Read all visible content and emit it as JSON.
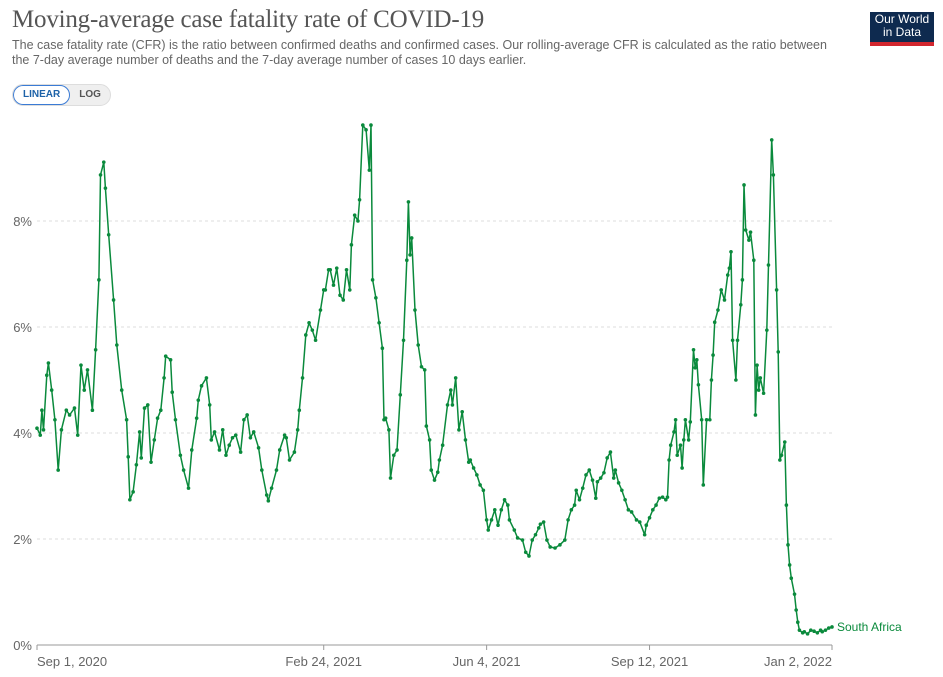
{
  "header": {
    "title": "Moving-average case fatality rate of COVID-19",
    "subtitle": "The case fatality rate (CFR) is the ratio between confirmed deaths and confirmed cases. Our rolling-average CFR is calculated as the ratio between the 7-day average number of deaths and the 7-day average number of cases 10 days earlier.",
    "logo_line1": "Our World",
    "logo_line2": "in Data",
    "scale_options": [
      "LINEAR",
      "LOG"
    ],
    "scale_selected": "LINEAR"
  },
  "colors": {
    "series": "#0a8a3c",
    "logo_bg": "#0e2a4f",
    "logo_accent": "#d2262e",
    "toggle_active": "#1d62a8"
  },
  "chart_data": {
    "type": "line",
    "title": "Moving-average case fatality rate of COVID-19",
    "xlabel": "",
    "ylabel": "",
    "x_ticks": [
      "Sep 1, 2020",
      "Feb 24, 2021",
      "Jun 4, 2021",
      "Sep 12, 2021",
      "Jan 2, 2022"
    ],
    "x_tick_dates": [
      "2020-09-01",
      "2021-02-24",
      "2021-06-04",
      "2021-09-12",
      "2022-01-02"
    ],
    "xlim": [
      "2020-09-01",
      "2022-01-02"
    ],
    "y_ticks": [
      "0%",
      "2%",
      "4%",
      "6%",
      "8%"
    ],
    "y_tick_values": [
      0,
      2,
      4,
      6,
      8
    ],
    "ylim": [
      0,
      10
    ],
    "grid": "horizontal dashed",
    "markers": true,
    "series": [
      {
        "name": "South Africa",
        "points": [
          [
            "2020-09-01",
            4.09
          ],
          [
            "2020-09-03",
            3.96
          ],
          [
            "2020-09-04",
            4.43
          ],
          [
            "2020-09-05",
            4.06
          ],
          [
            "2020-09-07",
            5.09
          ],
          [
            "2020-09-08",
            5.32
          ],
          [
            "2020-09-10",
            4.81
          ],
          [
            "2020-09-12",
            4.25
          ],
          [
            "2020-09-14",
            3.3
          ],
          [
            "2020-09-16",
            4.06
          ],
          [
            "2020-09-19",
            4.43
          ],
          [
            "2020-09-21",
            4.34
          ],
          [
            "2020-09-24",
            4.47
          ],
          [
            "2020-09-26",
            3.96
          ],
          [
            "2020-09-28",
            5.28
          ],
          [
            "2020-09-30",
            4.81
          ],
          [
            "2020-10-02",
            5.19
          ],
          [
            "2020-10-05",
            4.43
          ],
          [
            "2020-10-07",
            5.57
          ],
          [
            "2020-10-09",
            6.89
          ],
          [
            "2020-10-10",
            8.87
          ],
          [
            "2020-10-12",
            9.11
          ],
          [
            "2020-10-13",
            8.62
          ],
          [
            "2020-10-15",
            7.74
          ],
          [
            "2020-10-18",
            6.51
          ],
          [
            "2020-10-20",
            5.66
          ],
          [
            "2020-10-23",
            4.81
          ],
          [
            "2020-10-26",
            4.25
          ],
          [
            "2020-10-27",
            3.55
          ],
          [
            "2020-10-28",
            2.74
          ],
          [
            "2020-10-30",
            2.89
          ],
          [
            "2020-11-01",
            3.4
          ],
          [
            "2020-11-03",
            4.02
          ],
          [
            "2020-11-04",
            3.53
          ],
          [
            "2020-11-06",
            4.47
          ],
          [
            "2020-11-08",
            4.53
          ],
          [
            "2020-11-10",
            3.45
          ],
          [
            "2020-11-12",
            3.87
          ],
          [
            "2020-11-14",
            4.28
          ],
          [
            "2020-11-16",
            4.43
          ],
          [
            "2020-11-18",
            5.04
          ],
          [
            "2020-11-19",
            5.45
          ],
          [
            "2020-11-22",
            5.38
          ],
          [
            "2020-11-23",
            4.77
          ],
          [
            "2020-11-25",
            4.25
          ],
          [
            "2020-11-28",
            3.58
          ],
          [
            "2020-11-30",
            3.3
          ],
          [
            "2020-12-03",
            2.96
          ],
          [
            "2020-12-05",
            3.68
          ],
          [
            "2020-12-08",
            4.28
          ],
          [
            "2020-12-09",
            4.62
          ],
          [
            "2020-12-11",
            4.89
          ],
          [
            "2020-12-14",
            5.04
          ],
          [
            "2020-12-16",
            4.53
          ],
          [
            "2020-12-17",
            3.87
          ],
          [
            "2020-12-19",
            4.02
          ],
          [
            "2020-12-22",
            3.68
          ],
          [
            "2020-12-24",
            4.06
          ],
          [
            "2020-12-26",
            3.58
          ],
          [
            "2020-12-28",
            3.77
          ],
          [
            "2020-12-30",
            3.91
          ],
          [
            "2021-01-01",
            3.96
          ],
          [
            "2021-01-04",
            3.64
          ],
          [
            "2021-01-06",
            4.25
          ],
          [
            "2021-01-08",
            4.34
          ],
          [
            "2021-01-10",
            3.91
          ],
          [
            "2021-01-12",
            4.02
          ],
          [
            "2021-01-15",
            3.72
          ],
          [
            "2021-01-17",
            3.3
          ],
          [
            "2021-01-20",
            2.83
          ],
          [
            "2021-01-21",
            2.72
          ],
          [
            "2021-01-23",
            2.96
          ],
          [
            "2021-01-26",
            3.3
          ],
          [
            "2021-01-28",
            3.68
          ],
          [
            "2021-01-31",
            3.96
          ],
          [
            "2021-02-01",
            3.91
          ],
          [
            "2021-02-03",
            3.49
          ],
          [
            "2021-02-06",
            3.64
          ],
          [
            "2021-02-08",
            4.06
          ],
          [
            "2021-02-09",
            4.43
          ],
          [
            "2021-02-11",
            5.04
          ],
          [
            "2021-02-13",
            5.85
          ],
          [
            "2021-02-15",
            6.08
          ],
          [
            "2021-02-17",
            5.94
          ],
          [
            "2021-02-19",
            5.75
          ],
          [
            "2021-02-22",
            6.32
          ],
          [
            "2021-02-24",
            6.7
          ],
          [
            "2021-02-25",
            6.7
          ],
          [
            "2021-02-27",
            7.08
          ],
          [
            "2021-02-28",
            7.08
          ],
          [
            "2021-03-02",
            6.79
          ],
          [
            "2021-03-04",
            7.11
          ],
          [
            "2021-03-06",
            6.6
          ],
          [
            "2021-03-08",
            6.51
          ],
          [
            "2021-03-10",
            7.08
          ],
          [
            "2021-03-12",
            6.7
          ],
          [
            "2021-03-13",
            7.55
          ],
          [
            "2021-03-15",
            8.11
          ],
          [
            "2021-03-17",
            8.0
          ],
          [
            "2021-03-18",
            8.4
          ],
          [
            "2021-03-20",
            9.81
          ],
          [
            "2021-03-22",
            9.72
          ],
          [
            "2021-03-24",
            8.96
          ],
          [
            "2021-03-25",
            9.81
          ],
          [
            "2021-03-26",
            6.89
          ],
          [
            "2021-03-28",
            6.55
          ],
          [
            "2021-03-30",
            6.08
          ],
          [
            "2021-04-01",
            5.6
          ],
          [
            "2021-04-02",
            4.25
          ],
          [
            "2021-04-03",
            4.28
          ],
          [
            "2021-04-05",
            4.06
          ],
          [
            "2021-04-06",
            3.15
          ],
          [
            "2021-04-08",
            3.58
          ],
          [
            "2021-04-10",
            3.68
          ],
          [
            "2021-04-12",
            4.72
          ],
          [
            "2021-04-14",
            5.75
          ],
          [
            "2021-04-16",
            7.26
          ],
          [
            "2021-04-17",
            8.36
          ],
          [
            "2021-04-18",
            7.36
          ],
          [
            "2021-04-19",
            7.68
          ],
          [
            "2021-04-21",
            6.32
          ],
          [
            "2021-04-23",
            5.66
          ],
          [
            "2021-04-25",
            5.25
          ],
          [
            "2021-04-27",
            5.19
          ],
          [
            "2021-04-28",
            4.13
          ],
          [
            "2021-04-30",
            3.87
          ],
          [
            "2021-05-01",
            3.3
          ],
          [
            "2021-05-03",
            3.11
          ],
          [
            "2021-05-05",
            3.26
          ],
          [
            "2021-05-06",
            3.49
          ],
          [
            "2021-05-08",
            3.77
          ],
          [
            "2021-05-11",
            4.53
          ],
          [
            "2021-05-13",
            4.81
          ],
          [
            "2021-05-14",
            4.53
          ],
          [
            "2021-05-16",
            5.04
          ],
          [
            "2021-05-18",
            4.06
          ],
          [
            "2021-05-20",
            4.4
          ],
          [
            "2021-05-22",
            3.87
          ],
          [
            "2021-05-24",
            3.45
          ],
          [
            "2021-05-25",
            3.49
          ],
          [
            "2021-05-27",
            3.34
          ],
          [
            "2021-05-29",
            3.21
          ],
          [
            "2021-05-31",
            3.02
          ],
          [
            "2021-06-02",
            2.92
          ],
          [
            "2021-06-04",
            2.36
          ],
          [
            "2021-06-05",
            2.17
          ],
          [
            "2021-06-07",
            2.36
          ],
          [
            "2021-06-09",
            2.55
          ],
          [
            "2021-06-11",
            2.26
          ],
          [
            "2021-06-13",
            2.55
          ],
          [
            "2021-06-15",
            2.74
          ],
          [
            "2021-06-17",
            2.64
          ],
          [
            "2021-06-18",
            2.36
          ],
          [
            "2021-06-21",
            2.17
          ],
          [
            "2021-06-23",
            2.02
          ],
          [
            "2021-06-26",
            1.98
          ],
          [
            "2021-06-28",
            1.75
          ],
          [
            "2021-06-30",
            1.68
          ],
          [
            "2021-07-02",
            1.98
          ],
          [
            "2021-07-04",
            2.08
          ],
          [
            "2021-07-06",
            2.21
          ],
          [
            "2021-07-07",
            2.28
          ],
          [
            "2021-07-09",
            2.32
          ],
          [
            "2021-07-11",
            1.98
          ],
          [
            "2021-07-13",
            1.85
          ],
          [
            "2021-07-16",
            1.83
          ],
          [
            "2021-07-19",
            1.89
          ],
          [
            "2021-07-22",
            1.98
          ],
          [
            "2021-07-24",
            2.36
          ],
          [
            "2021-07-26",
            2.55
          ],
          [
            "2021-07-28",
            2.64
          ],
          [
            "2021-07-29",
            2.92
          ],
          [
            "2021-07-31",
            2.74
          ],
          [
            "2021-08-02",
            2.96
          ],
          [
            "2021-08-04",
            3.21
          ],
          [
            "2021-08-06",
            3.3
          ],
          [
            "2021-08-08",
            3.11
          ],
          [
            "2021-08-10",
            2.77
          ],
          [
            "2021-08-11",
            3.08
          ],
          [
            "2021-08-13",
            3.15
          ],
          [
            "2021-08-15",
            3.25
          ],
          [
            "2021-08-17",
            3.53
          ],
          [
            "2021-08-19",
            3.64
          ],
          [
            "2021-08-21",
            3.15
          ],
          [
            "2021-08-22",
            3.3
          ],
          [
            "2021-08-24",
            3.06
          ],
          [
            "2021-08-26",
            2.92
          ],
          [
            "2021-08-28",
            2.74
          ],
          [
            "2021-08-30",
            2.55
          ],
          [
            "2021-09-01",
            2.51
          ],
          [
            "2021-09-04",
            2.36
          ],
          [
            "2021-09-06",
            2.32
          ],
          [
            "2021-09-09",
            2.08
          ],
          [
            "2021-09-10",
            2.26
          ],
          [
            "2021-09-12",
            2.4
          ],
          [
            "2021-09-14",
            2.55
          ],
          [
            "2021-09-16",
            2.64
          ],
          [
            "2021-09-18",
            2.77
          ],
          [
            "2021-09-20",
            2.79
          ],
          [
            "2021-09-22",
            2.74
          ],
          [
            "2021-09-23",
            2.79
          ],
          [
            "2021-09-24",
            3.49
          ],
          [
            "2021-09-25",
            3.77
          ],
          [
            "2021-09-27",
            4.02
          ],
          [
            "2021-09-28",
            4.25
          ],
          [
            "2021-09-29",
            3.58
          ],
          [
            "2021-10-01",
            3.77
          ],
          [
            "2021-10-02",
            3.34
          ],
          [
            "2021-10-03",
            3.87
          ],
          [
            "2021-10-04",
            4.25
          ],
          [
            "2021-10-06",
            3.87
          ],
          [
            "2021-10-07",
            4.21
          ],
          [
            "2021-10-09",
            5.57
          ],
          [
            "2021-10-10",
            5.23
          ],
          [
            "2021-10-11",
            5.38
          ],
          [
            "2021-10-12",
            4.91
          ],
          [
            "2021-10-14",
            4.25
          ],
          [
            "2021-10-15",
            3.02
          ],
          [
            "2021-10-17",
            4.25
          ],
          [
            "2021-10-19",
            4.25
          ],
          [
            "2021-10-20",
            5.0
          ],
          [
            "2021-10-21",
            5.47
          ],
          [
            "2021-10-22",
            6.09
          ],
          [
            "2021-10-24",
            6.32
          ],
          [
            "2021-10-26",
            6.7
          ],
          [
            "2021-10-28",
            6.51
          ],
          [
            "2021-10-30",
            6.98
          ],
          [
            "2021-10-31",
            7.11
          ],
          [
            "2021-11-01",
            7.42
          ],
          [
            "2021-11-02",
            5.75
          ],
          [
            "2021-11-04",
            5.0
          ],
          [
            "2021-11-05",
            5.75
          ],
          [
            "2021-11-07",
            6.42
          ],
          [
            "2021-11-08",
            6.89
          ],
          [
            "2021-11-09",
            8.68
          ],
          [
            "2021-11-10",
            7.83
          ],
          [
            "2021-11-12",
            7.64
          ],
          [
            "2021-11-13",
            7.79
          ],
          [
            "2021-11-15",
            7.26
          ],
          [
            "2021-11-16",
            4.34
          ],
          [
            "2021-11-17",
            5.28
          ],
          [
            "2021-11-18",
            4.81
          ],
          [
            "2021-11-19",
            5.04
          ],
          [
            "2021-11-21",
            4.75
          ],
          [
            "2021-11-23",
            5.94
          ],
          [
            "2021-11-24",
            7.17
          ],
          [
            "2021-11-26",
            9.53
          ],
          [
            "2021-11-27",
            8.87
          ],
          [
            "2021-11-29",
            6.7
          ],
          [
            "2021-11-30",
            5.53
          ],
          [
            "2021-12-01",
            3.49
          ],
          [
            "2021-12-02",
            3.58
          ],
          [
            "2021-12-04",
            3.83
          ],
          [
            "2021-12-05",
            2.64
          ],
          [
            "2021-12-06",
            1.89
          ],
          [
            "2021-12-07",
            1.51
          ],
          [
            "2021-12-08",
            1.26
          ],
          [
            "2021-12-10",
            0.96
          ],
          [
            "2021-12-11",
            0.66
          ],
          [
            "2021-12-12",
            0.43
          ],
          [
            "2021-12-13",
            0.28
          ],
          [
            "2021-12-15",
            0.23
          ],
          [
            "2021-12-16",
            0.25
          ],
          [
            "2021-12-18",
            0.21
          ],
          [
            "2021-12-20",
            0.28
          ],
          [
            "2021-12-22",
            0.26
          ],
          [
            "2021-12-24",
            0.23
          ],
          [
            "2021-12-26",
            0.28
          ],
          [
            "2021-12-27",
            0.25
          ],
          [
            "2021-12-29",
            0.28
          ],
          [
            "2021-12-31",
            0.32
          ],
          [
            "2022-01-02",
            0.34
          ]
        ]
      }
    ]
  }
}
